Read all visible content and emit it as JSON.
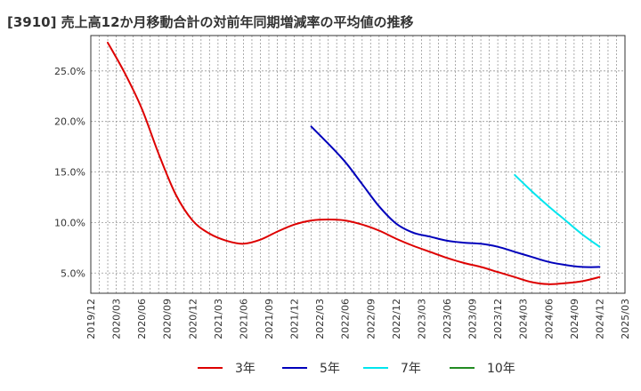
{
  "chart_data": {
    "type": "line",
    "title": "[3910]  売上高12か月移動合計の対前年同期増減率の平均値の推移",
    "xlabel": "",
    "ylabel": "",
    "ylim": [
      3.0,
      28.5
    ],
    "yticks": [
      5.0,
      10.0,
      15.0,
      20.0,
      25.0
    ],
    "ytick_labels": [
      "5.0%",
      "10.0%",
      "15.0%",
      "20.0%",
      "25.0%"
    ],
    "x_range": [
      "2019-12",
      "2025-03"
    ],
    "xticks": [
      "2019/12",
      "2020/03",
      "2020/06",
      "2020/09",
      "2020/12",
      "2021/03",
      "2021/06",
      "2021/09",
      "2021/12",
      "2022/03",
      "2022/06",
      "2022/09",
      "2022/12",
      "2023/03",
      "2023/06",
      "2023/09",
      "2023/12",
      "2024/03",
      "2024/06",
      "2024/09",
      "2024/12",
      "2025/03"
    ],
    "grid": true,
    "legend_position": "bottom",
    "series": [
      {
        "name": "3年",
        "color": "#dd0000",
        "points": [
          [
            "2020-02",
            27.8
          ],
          [
            "2020-04",
            24.8
          ],
          [
            "2020-06",
            21.3
          ],
          [
            "2020-08",
            16.8
          ],
          [
            "2020-10",
            12.8
          ],
          [
            "2020-12",
            10.2
          ],
          [
            "2021-02",
            8.9
          ],
          [
            "2021-04",
            8.2
          ],
          [
            "2021-06",
            7.9
          ],
          [
            "2021-08",
            8.3
          ],
          [
            "2021-10",
            9.1
          ],
          [
            "2021-12",
            9.8
          ],
          [
            "2022-02",
            10.2
          ],
          [
            "2022-04",
            10.3
          ],
          [
            "2022-06",
            10.2
          ],
          [
            "2022-08",
            9.8
          ],
          [
            "2022-10",
            9.2
          ],
          [
            "2022-12",
            8.4
          ],
          [
            "2023-02",
            7.7
          ],
          [
            "2023-04",
            7.1
          ],
          [
            "2023-06",
            6.5
          ],
          [
            "2023-08",
            6.0
          ],
          [
            "2023-10",
            5.6
          ],
          [
            "2023-12",
            5.1
          ],
          [
            "2024-02",
            4.6
          ],
          [
            "2024-04",
            4.1
          ],
          [
            "2024-06",
            3.9
          ],
          [
            "2024-08",
            4.0
          ],
          [
            "2024-10",
            4.2
          ],
          [
            "2024-12",
            4.6
          ]
        ]
      },
      {
        "name": "5年",
        "color": "#0000bb",
        "points": [
          [
            "2022-02",
            19.5
          ],
          [
            "2022-04",
            17.8
          ],
          [
            "2022-06",
            16.0
          ],
          [
            "2022-08",
            13.8
          ],
          [
            "2022-10",
            11.6
          ],
          [
            "2022-12",
            9.9
          ],
          [
            "2023-02",
            9.0
          ],
          [
            "2023-04",
            8.6
          ],
          [
            "2023-06",
            8.2
          ],
          [
            "2023-08",
            8.0
          ],
          [
            "2023-10",
            7.9
          ],
          [
            "2023-12",
            7.6
          ],
          [
            "2024-02",
            7.1
          ],
          [
            "2024-04",
            6.6
          ],
          [
            "2024-06",
            6.1
          ],
          [
            "2024-08",
            5.8
          ],
          [
            "2024-10",
            5.6
          ],
          [
            "2024-12",
            5.6
          ]
        ]
      },
      {
        "name": "7年",
        "color": "#00e5ee",
        "points": [
          [
            "2024-02",
            14.7
          ],
          [
            "2024-04",
            13.1
          ],
          [
            "2024-06",
            11.6
          ],
          [
            "2024-08",
            10.2
          ],
          [
            "2024-10",
            8.8
          ],
          [
            "2024-12",
            7.6
          ]
        ]
      },
      {
        "name": "10年",
        "color": "#228b22",
        "points": []
      }
    ]
  }
}
